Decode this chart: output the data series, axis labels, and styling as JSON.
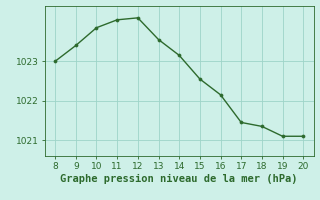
{
  "x": [
    8,
    9,
    10,
    11,
    12,
    13,
    14,
    15,
    16,
    17,
    18,
    19,
    20
  ],
  "y": [
    1023.0,
    1023.4,
    1023.85,
    1024.05,
    1024.1,
    1023.55,
    1023.15,
    1022.55,
    1022.15,
    1021.45,
    1021.35,
    1021.1,
    1021.1
  ],
  "line_color": "#2d6a2d",
  "marker_color": "#2d6a2d",
  "bg_color": "#cef0e8",
  "grid_color": "#9ed4c8",
  "xlabel": "Graphe pression niveau de la mer (hPa)",
  "xlabel_color": "#2d6a2d",
  "tick_color": "#2d6a2d",
  "spine_color": "#2d6a2d",
  "ylim": [
    1020.6,
    1024.4
  ],
  "yticks": [
    1021,
    1022,
    1023
  ],
  "xlim": [
    7.5,
    20.5
  ],
  "xticks": [
    8,
    9,
    10,
    11,
    12,
    13,
    14,
    15,
    16,
    17,
    18,
    19,
    20
  ],
  "xlabel_fontsize": 7.5,
  "tick_fontsize": 6.5
}
